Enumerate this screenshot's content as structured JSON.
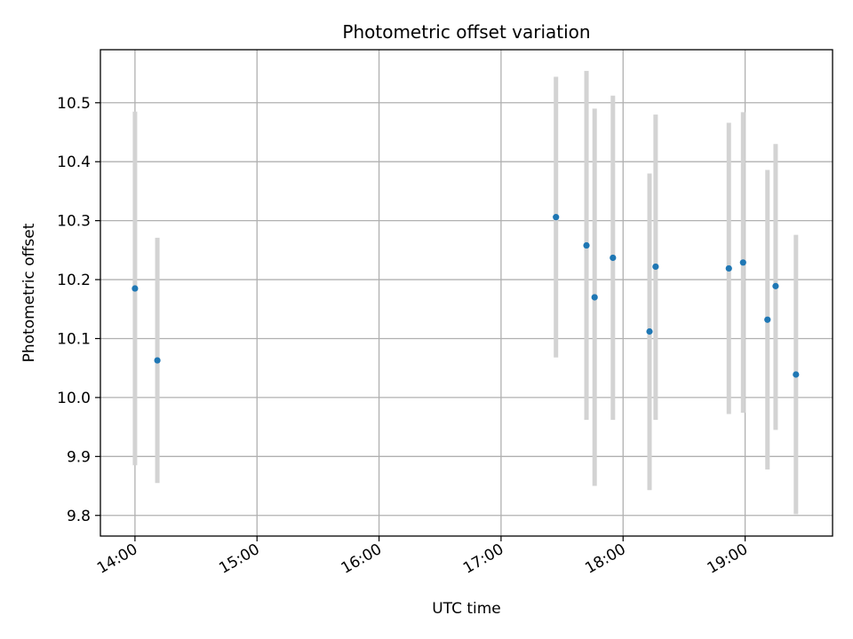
{
  "chart_data": {
    "type": "scatter",
    "title": "Photometric offset variation",
    "xlabel": "UTC time",
    "ylabel": "Photometric offset",
    "x_ticks": [
      "14:00",
      "15:00",
      "16:00",
      "17:00",
      "18:00",
      "19:00"
    ],
    "y_ticks": [
      "9.8",
      "9.9",
      "10.0",
      "10.1",
      "10.2",
      "10.3",
      "10.4",
      "10.5"
    ],
    "xlim": [
      "13:43",
      "19:43"
    ],
    "ylim": [
      9.765,
      10.59
    ],
    "grid": true,
    "point_color": "#1f77b4",
    "errorbar_color": "#d3d3d3",
    "series": [
      {
        "x": [
          "14:00",
          "14:11",
          "17:27",
          "17:42",
          "17:46",
          "17:55",
          "18:13",
          "18:16",
          "18:52",
          "18:59",
          "19:11",
          "19:15",
          "19:25"
        ],
        "y": [
          10.185,
          10.063,
          10.306,
          10.258,
          10.17,
          10.237,
          10.112,
          10.222,
          10.219,
          10.229,
          10.132,
          10.189,
          10.039
        ],
        "y_low": [
          9.885,
          9.855,
          10.068,
          9.962,
          9.85,
          9.962,
          9.843,
          9.962,
          9.972,
          9.974,
          9.878,
          9.945,
          9.802
        ],
        "y_high": [
          10.485,
          10.271,
          10.544,
          10.554,
          10.49,
          10.512,
          10.38,
          10.48,
          10.466,
          10.484,
          10.386,
          10.43,
          10.276
        ]
      }
    ]
  }
}
